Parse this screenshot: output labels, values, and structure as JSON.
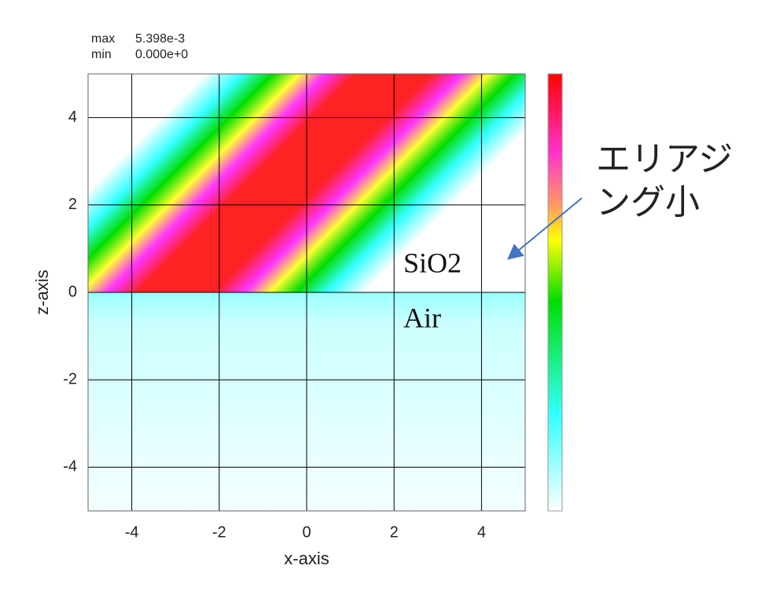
{
  "chart_data": {
    "type": "field",
    "max_label": "max",
    "max": {
      "value": 0.005398,
      "label": "5.398e-3"
    },
    "min_label": "min",
    "min": {
      "value": 0,
      "label": "0.000e+0"
    },
    "xlabel": "x-axis",
    "ylabel": "z-axis",
    "xlim": [
      -5,
      5
    ],
    "ylim": [
      -5,
      5
    ],
    "xticks": [
      -4,
      -2,
      0,
      2,
      4
    ],
    "yticks": [
      -4,
      -2,
      0,
      2,
      4
    ],
    "grid": true,
    "annotations": {
      "upper_region": "SiO2",
      "lower_region": "Air",
      "note": [
        "エリアジ",
        "ング小"
      ]
    }
  }
}
